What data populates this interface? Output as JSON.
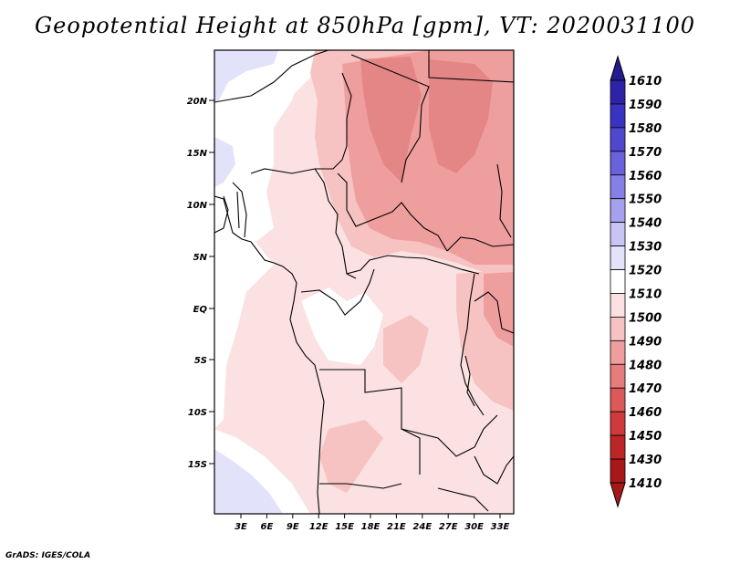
{
  "title": "Geopotential Height at 850hPa [gpm], VT: 2020031100",
  "credit": "GrADS: IGES/COLA",
  "map": {
    "lat_labels": [
      "20N",
      "15N",
      "10N",
      "5N",
      "EQ",
      "5S",
      "10S",
      "15S"
    ],
    "lon_labels": [
      "3E",
      "6E",
      "9E",
      "12E",
      "15E",
      "18E",
      "21E",
      "24E",
      "27E",
      "30E",
      "33E"
    ],
    "field": "Geopotential Height at 850hPa",
    "units": "gpm"
  },
  "colorbar": {
    "labels": [
      "1610",
      "1590",
      "1580",
      "1570",
      "1560",
      "1550",
      "1540",
      "1530",
      "1520",
      "1510",
      "1500",
      "1490",
      "1480",
      "1470",
      "1460",
      "1450",
      "1430",
      "1410"
    ],
    "colors": [
      "#231b8f",
      "#2c23a8",
      "#3a32c0",
      "#5047cf",
      "#6a62dc",
      "#8680e6",
      "#a6a1ee",
      "#c8c5f5",
      "#e3e2fb",
      "#ffffff",
      "#fbe1e1",
      "#f6c2c2",
      "#ef9e9e",
      "#e67c7c",
      "#dc5959",
      "#cf3b3b",
      "#bc2626",
      "#a81818"
    ]
  }
}
